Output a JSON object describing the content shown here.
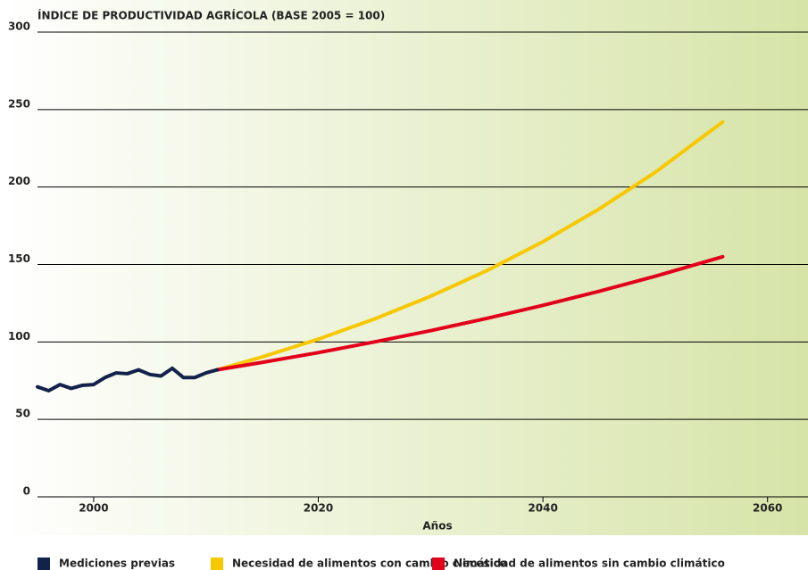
{
  "chart_data": {
    "type": "line",
    "title": "ÍNDICE DE PRODUCTIVIDAD AGRÍCOLA (BASE 2005 = 100)",
    "x_label": "Años",
    "xlim": [
      1995,
      2063.6
    ],
    "xticks": [
      2000,
      2020,
      2040,
      2060
    ],
    "ylim": [
      0,
      300
    ],
    "yticks": [
      0,
      50,
      100,
      150,
      200,
      250,
      300
    ],
    "grid": true,
    "legend": "bottom",
    "series": [
      {
        "name": "Mediciones previas",
        "color": "#13224a",
        "x": [
          1995,
          1996,
          1997,
          1998,
          1999,
          2000,
          2001,
          2002,
          2003,
          2004,
          2005,
          2006,
          2007,
          2008,
          2009,
          2010,
          2011
        ],
        "values": [
          71,
          68.5,
          72.5,
          70,
          72,
          72.5,
          77,
          80,
          79.5,
          82,
          79,
          78,
          83,
          77,
          77,
          80,
          82
        ]
      },
      {
        "name": "Necesidad de alimentos con cambio climático",
        "color": "#f7c700",
        "x": [
          2011,
          2015,
          2020,
          2025,
          2030,
          2035,
          2040,
          2045,
          2050,
          2056
        ],
        "values": [
          82,
          90.3,
          101.8,
          114.8,
          129.5,
          146,
          164.7,
          185.8,
          209.5,
          242
        ]
      },
      {
        "name": "Necesidad de alimentos sin cambio climático",
        "color": "#e3001b",
        "x": [
          2011,
          2015,
          2020,
          2025,
          2030,
          2035,
          2040,
          2045,
          2050,
          2056
        ],
        "values": [
          82,
          86.8,
          93.1,
          100,
          107.3,
          115.2,
          123.6,
          132.7,
          142.4,
          155
        ]
      }
    ]
  }
}
